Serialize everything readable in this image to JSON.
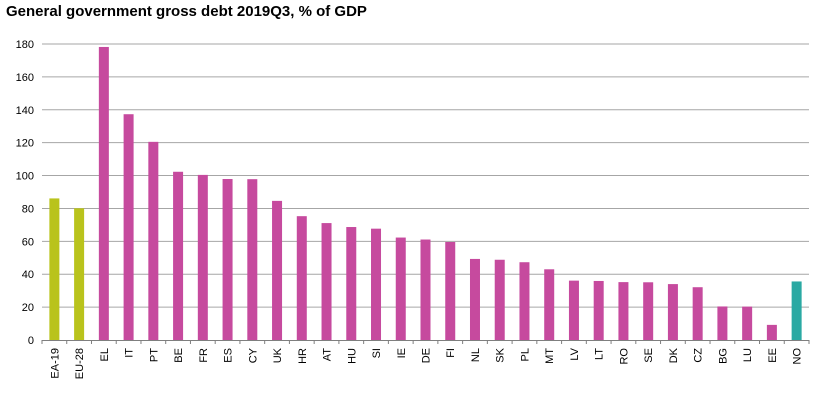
{
  "chart_data": {
    "type": "bar",
    "title": "General government gross debt 2019Q3, % of GDP",
    "xlabel": "",
    "ylabel": "",
    "ylim": [
      0,
      180
    ],
    "yticks": [
      0,
      20,
      40,
      60,
      80,
      100,
      120,
      140,
      160,
      180
    ],
    "grid": true,
    "categories": [
      "EA-19",
      "EU-28",
      "EL",
      "IT",
      "PT",
      "BE",
      "FR",
      "ES",
      "CY",
      "UK",
      "HR",
      "AT",
      "HU",
      "SI",
      "IE",
      "DE",
      "FI",
      "NL",
      "SK",
      "PL",
      "MT",
      "LV",
      "LT",
      "RO",
      "SE",
      "DK",
      "CZ",
      "BG",
      "LU",
      "EE",
      "NO"
    ],
    "values": [
      86.1,
      80.1,
      178.2,
      137.3,
      120.5,
      102.3,
      100.4,
      97.9,
      97.8,
      84.6,
      75.3,
      71.1,
      68.7,
      67.7,
      62.3,
      61.1,
      59.6,
      49.3,
      48.8,
      47.3,
      43.0,
      36.1,
      35.9,
      35.2,
      35.1,
      34.0,
      32.1,
      20.4,
      20.3,
      9.2,
      35.6
    ],
    "colors": {
      "aggregate": "#b9c31c",
      "member": "#c64a9e",
      "other": "#2aa9a3"
    },
    "groups": [
      "aggregate",
      "aggregate",
      "member",
      "member",
      "member",
      "member",
      "member",
      "member",
      "member",
      "member",
      "member",
      "member",
      "member",
      "member",
      "member",
      "member",
      "member",
      "member",
      "member",
      "member",
      "member",
      "member",
      "member",
      "member",
      "member",
      "member",
      "member",
      "member",
      "member",
      "member",
      "other"
    ]
  }
}
